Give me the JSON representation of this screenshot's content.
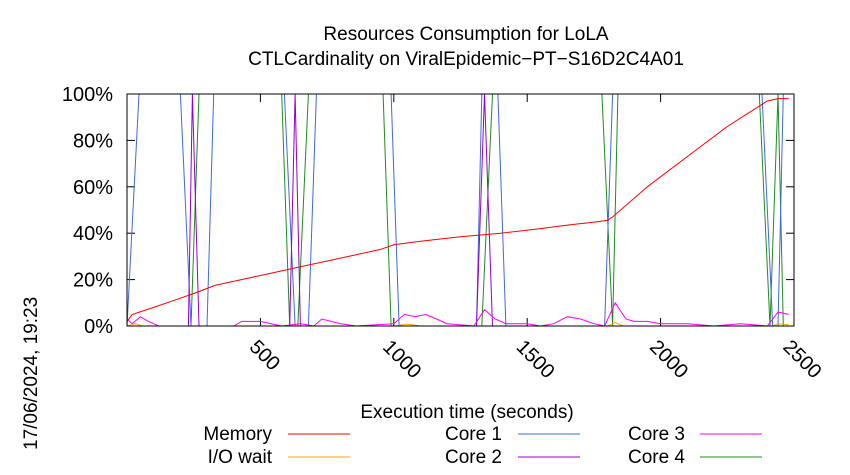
{
  "timestamp": "17/06/2024, 19:23",
  "chart_data": {
    "type": "line",
    "title": "Resources Consumption for LoLA",
    "subtitle": "CTLCardinality on ViralEpidemic−PT−S16D2C4A01",
    "xlabel": "Execution time (seconds)",
    "ylabel": "",
    "xlim": [
      0,
      2500
    ],
    "ylim": [
      0,
      100
    ],
    "x_ticks": [
      500,
      1000,
      1500,
      2000,
      2500
    ],
    "x_tick_labels": [
      "500",
      "1000",
      "1500",
      "2000",
      "2500"
    ],
    "y_ticks": [
      0,
      20,
      40,
      60,
      80,
      100
    ],
    "y_tick_labels": [
      "0%",
      "20%",
      "40%",
      "60%",
      "80%",
      "100%"
    ],
    "legend_placement": "bottom",
    "series": [
      {
        "name": "Memory",
        "color": "#ff0000",
        "points": [
          [
            0,
            2
          ],
          [
            20,
            5
          ],
          [
            100,
            8
          ],
          [
            200,
            12
          ],
          [
            250,
            14
          ],
          [
            330,
            17.5
          ],
          [
            450,
            20.5
          ],
          [
            550,
            23
          ],
          [
            650,
            25.5
          ],
          [
            750,
            28
          ],
          [
            850,
            30.5
          ],
          [
            950,
            33
          ],
          [
            1000,
            35
          ],
          [
            1100,
            36.5
          ],
          [
            1250,
            38.5
          ],
          [
            1400,
            40
          ],
          [
            1550,
            42
          ],
          [
            1650,
            43.5
          ],
          [
            1750,
            44.8
          ],
          [
            1800,
            45.5
          ],
          [
            1820,
            47
          ],
          [
            1950,
            60
          ],
          [
            2100,
            73
          ],
          [
            2250,
            86
          ],
          [
            2400,
            97
          ],
          [
            2440,
            98
          ],
          [
            2480,
            98
          ]
        ]
      },
      {
        "name": "I/O wait",
        "color": "#ffa500",
        "points": [
          [
            0,
            0
          ],
          [
            30,
            1
          ],
          [
            60,
            0
          ],
          [
            1000,
            0
          ],
          [
            1050,
            0.8
          ],
          [
            1100,
            0
          ],
          [
            1800,
            0
          ],
          [
            1830,
            1.5
          ],
          [
            1860,
            0
          ],
          [
            2420,
            0
          ],
          [
            2440,
            1
          ],
          [
            2480,
            0.5
          ]
        ]
      },
      {
        "name": "Core 1",
        "color": "#4169e1",
        "points": [
          [
            0,
            0
          ],
          [
            45,
            100
          ],
          [
            200,
            100
          ],
          [
            240,
            0
          ],
          [
            300,
            0
          ],
          [
            325,
            100
          ],
          [
            590,
            100
          ],
          [
            630,
            0
          ],
          [
            680,
            0
          ],
          [
            710,
            100
          ],
          [
            990,
            100
          ],
          [
            1020,
            0
          ],
          [
            1310,
            0
          ],
          [
            1330,
            100
          ],
          [
            1390,
            100
          ],
          [
            1420,
            0
          ],
          [
            1790,
            0
          ],
          [
            1820,
            100
          ],
          [
            2380,
            100
          ],
          [
            2420,
            0
          ],
          [
            2440,
            0
          ],
          [
            2460,
            100
          ],
          [
            2480,
            100
          ]
        ]
      },
      {
        "name": "Core 2",
        "color": "#9400d3",
        "points": [
          [
            0,
            0
          ],
          [
            230,
            0
          ],
          [
            245,
            100
          ],
          [
            270,
            0
          ],
          [
            610,
            0
          ],
          [
            630,
            100
          ],
          [
            650,
            0
          ],
          [
            1310,
            0
          ],
          [
            1340,
            100
          ],
          [
            1370,
            0
          ],
          [
            2480,
            0
          ]
        ]
      },
      {
        "name": "Core 3",
        "color": "#ff00ff",
        "points": [
          [
            0,
            3
          ],
          [
            20,
            1
          ],
          [
            50,
            4
          ],
          [
            80,
            2
          ],
          [
            120,
            0
          ],
          [
            400,
            0
          ],
          [
            430,
            2
          ],
          [
            500,
            2
          ],
          [
            540,
            1
          ],
          [
            580,
            0
          ],
          [
            650,
            1
          ],
          [
            700,
            0
          ],
          [
            730,
            3
          ],
          [
            800,
            1
          ],
          [
            860,
            0
          ],
          [
            1000,
            1
          ],
          [
            1040,
            5
          ],
          [
            1080,
            4
          ],
          [
            1120,
            5
          ],
          [
            1160,
            3
          ],
          [
            1200,
            1
          ],
          [
            1300,
            0
          ],
          [
            1340,
            7
          ],
          [
            1380,
            3
          ],
          [
            1420,
            1
          ],
          [
            1500,
            1
          ],
          [
            1550,
            0
          ],
          [
            1600,
            1
          ],
          [
            1650,
            4
          ],
          [
            1700,
            3
          ],
          [
            1750,
            1
          ],
          [
            1790,
            0
          ],
          [
            1830,
            10
          ],
          [
            1870,
            3
          ],
          [
            1900,
            2
          ],
          [
            1950,
            2
          ],
          [
            2000,
            1
          ],
          [
            2100,
            1
          ],
          [
            2200,
            0
          ],
          [
            2300,
            1
          ],
          [
            2400,
            0
          ],
          [
            2440,
            6
          ],
          [
            2480,
            5
          ]
        ]
      },
      {
        "name": "Core 4",
        "color": "#228b22",
        "points": [
          [
            0,
            0
          ],
          [
            40,
            0
          ],
          [
            240,
            0
          ],
          [
            270,
            100
          ],
          [
            580,
            100
          ],
          [
            610,
            0
          ],
          [
            640,
            0
          ],
          [
            680,
            100
          ],
          [
            960,
            100
          ],
          [
            990,
            0
          ],
          [
            1330,
            0
          ],
          [
            1370,
            100
          ],
          [
            1780,
            100
          ],
          [
            1820,
            0
          ],
          [
            1840,
            100
          ],
          [
            2370,
            100
          ],
          [
            2410,
            0
          ],
          [
            2440,
            100
          ],
          [
            2460,
            0
          ],
          [
            2480,
            0
          ]
        ]
      }
    ]
  }
}
